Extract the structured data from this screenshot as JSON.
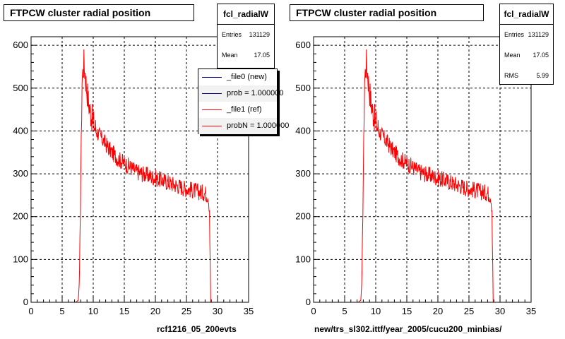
{
  "left": {
    "title": "FTPCW cluster radial position",
    "stats": {
      "name": "fcl_radialW",
      "rows": [
        {
          "label": "Entries",
          "value": "131129"
        },
        {
          "label": "Mean",
          "value": "17.05"
        }
      ]
    },
    "legend": [
      {
        "label": "_file0 (new)",
        "color": "#00007f"
      },
      {
        "label": "prob = 1.000000",
        "color": "#00007f"
      },
      {
        "label": "_file1 (ref)",
        "color": "#ff0000"
      },
      {
        "label": "probN = 1.000000",
        "color": "#ff0000"
      }
    ],
    "footer": "rcf1216_05_200evts"
  },
  "right": {
    "title": "FTPCW cluster radial position",
    "stats": {
      "name": "fcl_radialW",
      "rows": [
        {
          "label": "Entries",
          "value": "131129"
        },
        {
          "label": "Mean",
          "value": "17.05"
        },
        {
          "label": "RMS",
          "value": "5.99"
        }
      ]
    },
    "footer": "new/trs_sl302.ittf/year_2005/cucu200_minbias/"
  },
  "chart_data": [
    {
      "type": "line",
      "title": "FTPCW cluster radial position",
      "xlim": [
        0,
        35
      ],
      "ylim": [
        0,
        620
      ],
      "xticks": [
        0,
        5,
        10,
        15,
        20,
        25,
        30,
        35
      ],
      "yticks": [
        0,
        100,
        200,
        300,
        400,
        500,
        600
      ],
      "grid": true,
      "series": [
        {
          "name": "_file1 (ref)",
          "color": "#ff0000",
          "points": [
            [
              0,
              0
            ],
            [
              7.2,
              0
            ],
            [
              7.6,
              5
            ],
            [
              7.8,
              60
            ],
            [
              8.0,
              300
            ],
            [
              8.2,
              520
            ],
            [
              8.5,
              560
            ],
            [
              8.8,
              520
            ],
            [
              9.2,
              470
            ],
            [
              9.6,
              440
            ],
            [
              10.0,
              420
            ],
            [
              10.5,
              400
            ],
            [
              11,
              390
            ],
            [
              12,
              370
            ],
            [
              13,
              350
            ],
            [
              14,
              335
            ],
            [
              15,
              325
            ],
            [
              16,
              315
            ],
            [
              17,
              305
            ],
            [
              18,
              300
            ],
            [
              19,
              295
            ],
            [
              20,
              290
            ],
            [
              21,
              285
            ],
            [
              22,
              280
            ],
            [
              23,
              275
            ],
            [
              24,
              270
            ],
            [
              25,
              265
            ],
            [
              26,
              262
            ],
            [
              27,
              258
            ],
            [
              28,
              255
            ],
            [
              28.5,
              250
            ],
            [
              28.7,
              220
            ],
            [
              28.9,
              0
            ],
            [
              35,
              0
            ]
          ]
        }
      ]
    },
    {
      "type": "line",
      "title": "FTPCW cluster radial position",
      "xlim": [
        0,
        35
      ],
      "ylim": [
        0,
        620
      ],
      "xticks": [
        0,
        5,
        10,
        15,
        20,
        25,
        30,
        35
      ],
      "yticks": [
        0,
        100,
        200,
        300,
        400,
        500,
        600
      ],
      "grid": true,
      "series": [
        {
          "name": "fcl_radialW",
          "color": "#ff0000",
          "points": [
            [
              0,
              0
            ],
            [
              7.2,
              0
            ],
            [
              7.6,
              5
            ],
            [
              7.8,
              60
            ],
            [
              8.0,
              300
            ],
            [
              8.2,
              520
            ],
            [
              8.5,
              560
            ],
            [
              8.8,
              520
            ],
            [
              9.2,
              470
            ],
            [
              9.6,
              440
            ],
            [
              10.0,
              420
            ],
            [
              10.5,
              400
            ],
            [
              11,
              390
            ],
            [
              12,
              370
            ],
            [
              13,
              350
            ],
            [
              14,
              335
            ],
            [
              15,
              325
            ],
            [
              16,
              315
            ],
            [
              17,
              305
            ],
            [
              18,
              300
            ],
            [
              19,
              295
            ],
            [
              20,
              290
            ],
            [
              21,
              285
            ],
            [
              22,
              280
            ],
            [
              23,
              275
            ],
            [
              24,
              270
            ],
            [
              25,
              265
            ],
            [
              26,
              262
            ],
            [
              27,
              258
            ],
            [
              28,
              255
            ],
            [
              28.5,
              250
            ],
            [
              28.7,
              220
            ],
            [
              28.9,
              0
            ],
            [
              35,
              0
            ]
          ]
        }
      ]
    }
  ]
}
